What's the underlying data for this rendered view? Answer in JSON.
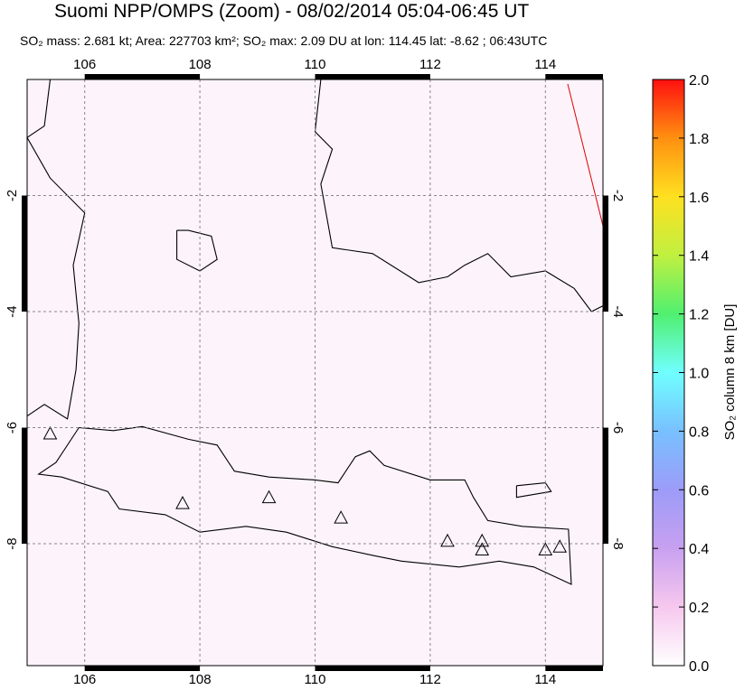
{
  "chart_data": {
    "type": "map",
    "title": "Suomi NPP/OMPS (Zoom) - 08/02/2014 05:04-06:45 UT",
    "subtitle": "SO₂ mass: 2.681 kt; Area: 227703 km²; SO₂ max: 2.09 DU at lon: 114.45 lat: -8.62 ; 06:43UTC",
    "xlim": [
      105,
      115
    ],
    "xticks": [
      106,
      108,
      110,
      112,
      114
    ],
    "ylim": [
      -10.1,
      0
    ],
    "yticks": [
      -2,
      -4,
      -6,
      -8
    ],
    "grid": true,
    "colorbar": {
      "label": "SO₂ column 8 km [DU]",
      "lim": [
        0,
        2
      ],
      "ticks": [
        {
          "value": 0,
          "label": "0.0"
        },
        {
          "value": 0.2,
          "label": "0.2"
        },
        {
          "value": 0.4,
          "label": "0.4"
        },
        {
          "value": 0.6,
          "label": "0.6"
        },
        {
          "value": 0.8,
          "label": "0.8"
        },
        {
          "value": 1,
          "label": "1.0"
        },
        {
          "value": 1.2,
          "label": "1.2"
        },
        {
          "value": 1.4,
          "label": "1.4"
        },
        {
          "value": 1.6,
          "label": "1.6"
        },
        {
          "value": 1.8,
          "label": "1.8"
        },
        {
          "value": 2,
          "label": "2.0"
        }
      ],
      "colors": [
        "#ffffff",
        "#f6c8ee",
        "#c8a0f0",
        "#9c9cf8",
        "#78c0ff",
        "#70ffff",
        "#50f070",
        "#c0f040",
        "#ffe020",
        "#ff9010",
        "#ff1010"
      ]
    }
  }
}
